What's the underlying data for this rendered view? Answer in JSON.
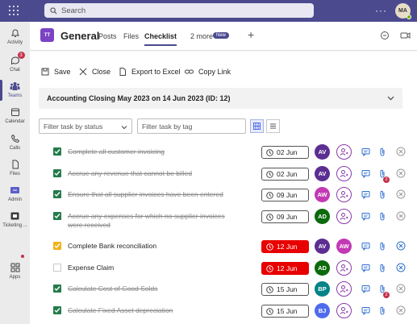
{
  "search": {
    "placeholder": "Search"
  },
  "user": {
    "initials": "MA"
  },
  "rail": [
    {
      "label": "Activity",
      "icon": "bell-icon"
    },
    {
      "label": "Chat",
      "icon": "chat-icon",
      "badge": "3"
    },
    {
      "label": "Teams",
      "icon": "teams-icon",
      "active": true
    },
    {
      "label": "Calendar",
      "icon": "calendar-icon"
    },
    {
      "label": "Calls",
      "icon": "phone-icon"
    },
    {
      "label": "Files",
      "icon": "file-icon"
    },
    {
      "label": "Admin",
      "icon": "admin-icon"
    },
    {
      "label": "Ticketing ...",
      "icon": "ticket-icon"
    },
    {
      "label": "Apps",
      "icon": "apps-icon"
    }
  ],
  "header": {
    "team_initials": "TT",
    "channel": "General",
    "tabs": [
      "Posts",
      "Files",
      "Checklist",
      "2 more"
    ],
    "new_badge": "New"
  },
  "toolbar": {
    "save": "Save",
    "close": "Close",
    "export": "Export to Excel",
    "copy_link": "Copy Link"
  },
  "checklist": {
    "title": "Accounting Closing May 2023 on 14 Jun 2023 (ID: 12)",
    "filter_status_placeholder": "Filter task by status",
    "filter_tag_placeholder": "Filter task by tag"
  },
  "tasks": [
    {
      "name": "Complete all customer invoicing",
      "status": "done",
      "date": "02 Jun",
      "overdue": false,
      "assignee": "AV",
      "assignee_color": "#5c2e91",
      "second": "add",
      "attach_count": ""
    },
    {
      "name": "Accrue any revenue that cannot be billed",
      "status": "done",
      "date": "02 Jun",
      "overdue": false,
      "assignee": "AV",
      "assignee_color": "#5c2e91",
      "second": "add",
      "attach_count": "2"
    },
    {
      "name": "Ensure that all supplier invoices have been entered",
      "status": "done",
      "date": "09 Jun",
      "overdue": false,
      "assignee": "AW",
      "assignee_color": "#c239b3",
      "second": "add",
      "attach_count": ""
    },
    {
      "name": "Accrue any expenses for which no supplier invoices were received",
      "status": "done",
      "date": "09 Jun",
      "overdue": false,
      "assignee": "AD",
      "assignee_color": "#0b6a0b",
      "second": "add",
      "attach_count": ""
    },
    {
      "name": "Complete Bank reconciliation",
      "status": "partial",
      "date": "12 Jun",
      "overdue": true,
      "assignee": "AV",
      "assignee_color": "#5c2e91",
      "second": "AW",
      "second_color": "#c239b3",
      "attach_count": ""
    },
    {
      "name": "Expense Claim",
      "status": "open",
      "date": "12 Jun",
      "overdue": true,
      "assignee": "AD",
      "assignee_color": "#0b6a0b",
      "second": "add",
      "attach_count": ""
    },
    {
      "name": "Calculate Cost of Good Solds",
      "status": "done",
      "date": "15 Jun",
      "overdue": false,
      "assignee": "BP",
      "assignee_color": "#038387",
      "second": "add",
      "attach_count": "2"
    },
    {
      "name": "Calculate Fixed Asset depreciation",
      "status": "done",
      "date": "15 Jun",
      "overdue": false,
      "assignee": "BJ",
      "assignee_color": "#4f6bed",
      "second": "add",
      "attach_count": ""
    }
  ]
}
